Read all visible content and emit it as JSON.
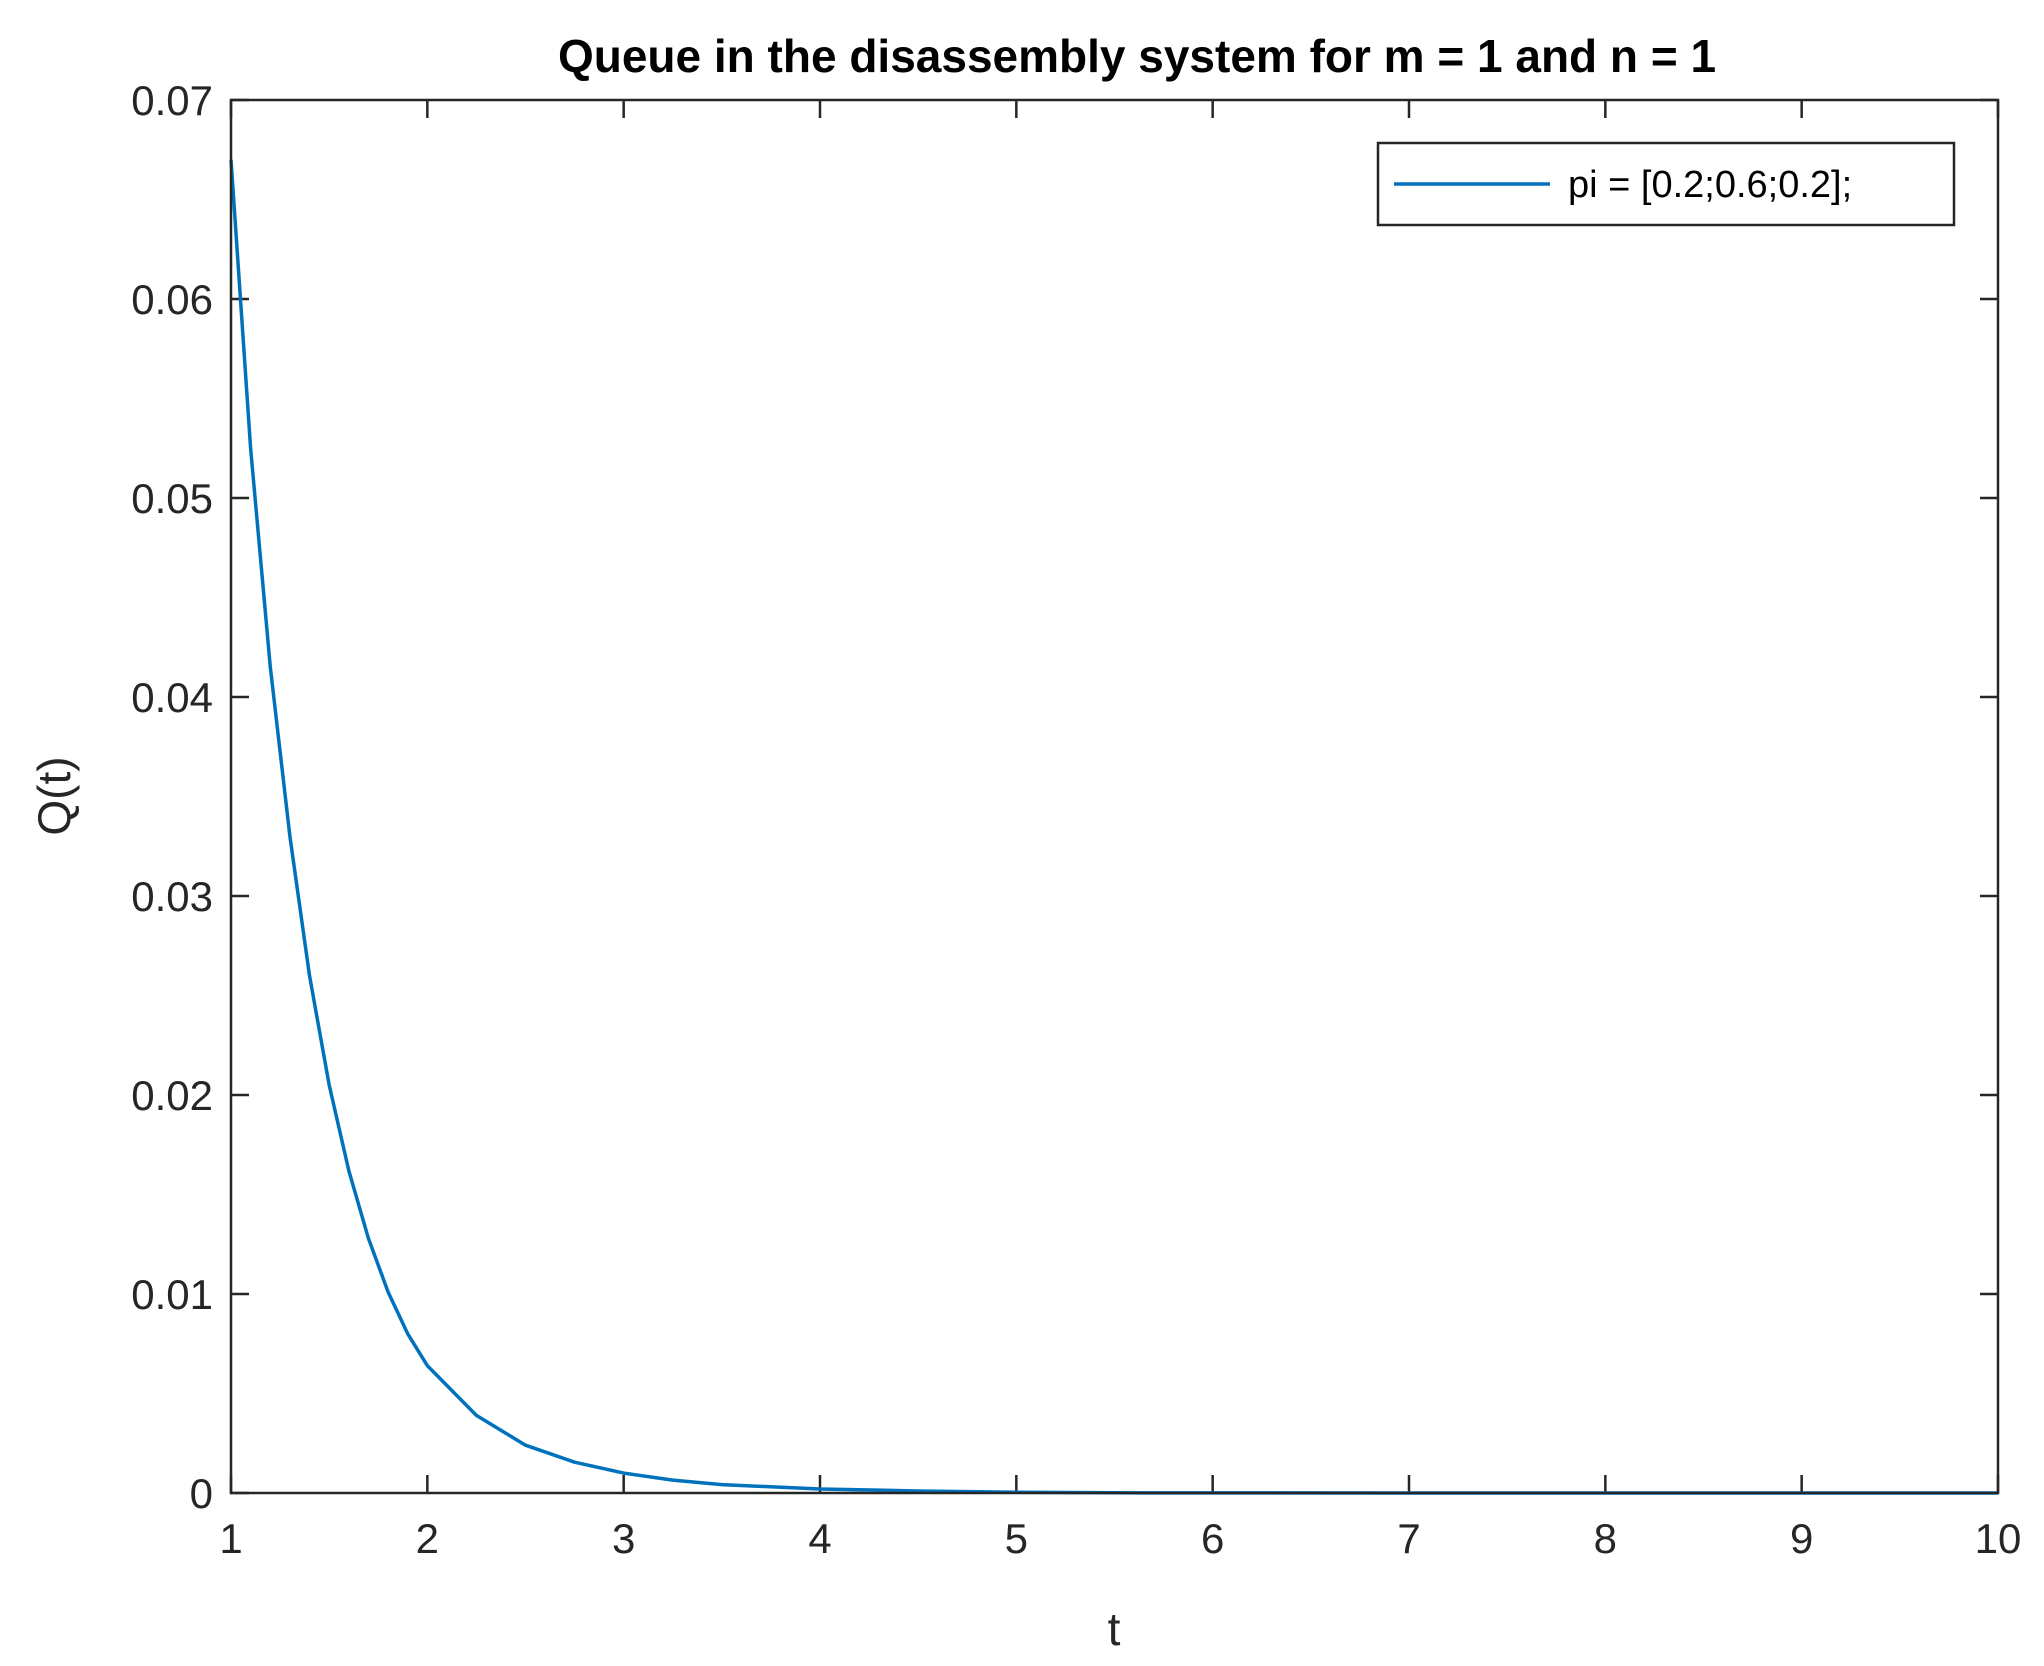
{
  "chart_data": {
    "type": "line",
    "title": "Queue in the disassembly system for m = 1 and n = 1",
    "xlabel": "t",
    "ylabel": "Q(t)",
    "xlim": [
      1,
      10
    ],
    "ylim": [
      0,
      0.07
    ],
    "x_ticks": [
      "1",
      "2",
      "3",
      "4",
      "5",
      "6",
      "7",
      "8",
      "9",
      "10"
    ],
    "y_ticks": [
      "0",
      "0.01",
      "0.02",
      "0.03",
      "0.04",
      "0.05",
      "0.06",
      "0.07"
    ],
    "grid": false,
    "legend_position": "top-right",
    "series": [
      {
        "name": "pi = [0.2;0.6;0.2];",
        "color": "#0072BD",
        "x": [
          1,
          1.1,
          1.2,
          1.3,
          1.4,
          1.5,
          1.6,
          1.7,
          1.8,
          1.9,
          2,
          2.25,
          2.5,
          2.75,
          3,
          3.25,
          3.5,
          4,
          4.5,
          5,
          5.5,
          6,
          7,
          8,
          9,
          10
        ],
        "y": [
          0.067,
          0.0525,
          0.0415,
          0.033,
          0.026,
          0.0205,
          0.0162,
          0.0128,
          0.0101,
          0.008,
          0.0064,
          0.0039,
          0.0024,
          0.00155,
          0.001,
          0.00065,
          0.00042,
          0.0002,
          0.0001,
          4e-05,
          1e-05,
          5e-06,
          0,
          0,
          0,
          0
        ]
      }
    ]
  }
}
